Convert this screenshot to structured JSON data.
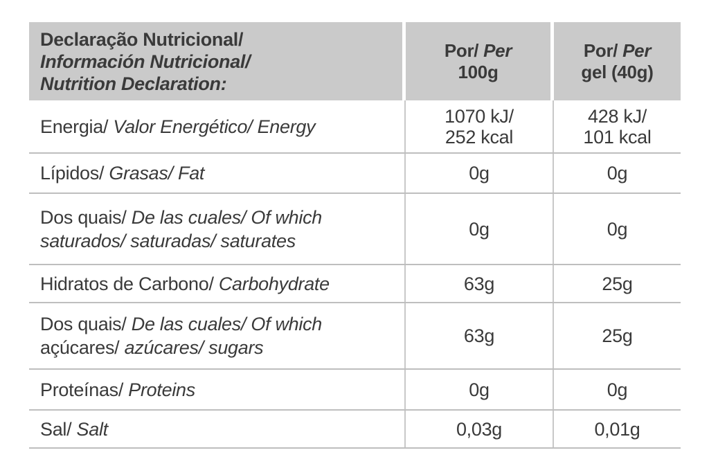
{
  "colors": {
    "page_background": "#ffffff",
    "header_background": "#cacaca",
    "text": "#3a3a3a",
    "row_border": "#bebebe",
    "column_divider": "#c8c8c8"
  },
  "table": {
    "header": {
      "title_lines": [
        {
          "text": "Declaração Nutricional/",
          "italic": false
        },
        {
          "text": "Información Nutricional/",
          "italic": true
        },
        {
          "text": "Nutrition Declaration:",
          "italic": true
        }
      ],
      "columns": [
        {
          "name": "per-100g",
          "lines": [
            [
              {
                "text": "Por/ ",
                "italic": false
              },
              {
                "text": "Per",
                "italic": true
              }
            ],
            [
              {
                "text": "100g",
                "italic": false
              }
            ]
          ]
        },
        {
          "name": "per-gel-40g",
          "lines": [
            [
              {
                "text": "Por/ ",
                "italic": false
              },
              {
                "text": "Per",
                "italic": true
              }
            ],
            [
              {
                "text": "gel (40g)",
                "italic": false
              }
            ]
          ]
        }
      ]
    },
    "rows": [
      {
        "name": "energy",
        "label_lines": [
          [
            {
              "text": "Energia/ ",
              "italic": false
            },
            {
              "text": "Valor Energético/ Energy",
              "italic": true
            }
          ]
        ],
        "per_100g": [
          "1070 kJ/",
          "252 kcal"
        ],
        "per_gel": [
          "428 kJ/",
          "101 kcal"
        ]
      },
      {
        "name": "fat",
        "label_lines": [
          [
            {
              "text": "Lípidos/ ",
              "italic": false
            },
            {
              "text": "Grasas/ Fat",
              "italic": true
            }
          ]
        ],
        "per_100g": [
          "0g"
        ],
        "per_gel": [
          "0g"
        ]
      },
      {
        "name": "saturates",
        "label_lines": [
          [
            {
              "text": "Dos quais/ ",
              "italic": false
            },
            {
              "text": "De las cuales/ Of which",
              "italic": true
            }
          ],
          [
            {
              "text": "saturados/ saturadas/ saturates",
              "italic": true
            }
          ]
        ],
        "per_100g": [
          "0g"
        ],
        "per_gel": [
          "0g"
        ]
      },
      {
        "name": "carbohydrate",
        "label_lines": [
          [
            {
              "text": "Hidratos de Carbono/ ",
              "italic": false
            },
            {
              "text": "Carbohydrate",
              "italic": true
            }
          ]
        ],
        "per_100g": [
          "63g"
        ],
        "per_gel": [
          "25g"
        ]
      },
      {
        "name": "sugars",
        "label_lines": [
          [
            {
              "text": "Dos quais/ ",
              "italic": false
            },
            {
              "text": "De las cuales/ Of which",
              "italic": true
            }
          ],
          [
            {
              "text": "açúcares/ ",
              "italic": false
            },
            {
              "text": "azúcares/ sugars",
              "italic": true
            }
          ]
        ],
        "per_100g": [
          "63g"
        ],
        "per_gel": [
          "25g"
        ]
      },
      {
        "name": "proteins",
        "label_lines": [
          [
            {
              "text": "Proteínas/ ",
              "italic": false
            },
            {
              "text": "Proteins",
              "italic": true
            }
          ]
        ],
        "per_100g": [
          "0g"
        ],
        "per_gel": [
          "0g"
        ]
      },
      {
        "name": "salt",
        "label_lines": [
          [
            {
              "text": "Sal/ ",
              "italic": false
            },
            {
              "text": "Salt",
              "italic": true
            }
          ]
        ],
        "per_100g": [
          "0,03g"
        ],
        "per_gel": [
          "0,01g"
        ]
      }
    ]
  }
}
